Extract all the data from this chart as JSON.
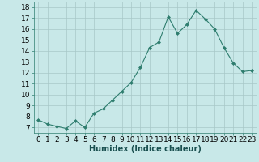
{
  "x": [
    0,
    1,
    2,
    3,
    4,
    5,
    6,
    7,
    8,
    9,
    10,
    11,
    12,
    13,
    14,
    15,
    16,
    17,
    18,
    19,
    20,
    21,
    22,
    23
  ],
  "y": [
    7.7,
    7.3,
    7.1,
    6.9,
    7.6,
    7.0,
    8.3,
    8.7,
    9.5,
    10.3,
    11.1,
    12.5,
    14.3,
    14.8,
    17.1,
    15.6,
    16.4,
    17.7,
    16.9,
    16.0,
    14.3,
    12.9,
    12.1,
    12.2
  ],
  "xlabel": "Humidex (Indice chaleur)",
  "xlim": [
    -0.5,
    23.5
  ],
  "ylim": [
    6.5,
    18.5
  ],
  "yticks": [
    7,
    8,
    9,
    10,
    11,
    12,
    13,
    14,
    15,
    16,
    17,
    18
  ],
  "xticks": [
    0,
    1,
    2,
    3,
    4,
    5,
    6,
    7,
    8,
    9,
    10,
    11,
    12,
    13,
    14,
    15,
    16,
    17,
    18,
    19,
    20,
    21,
    22,
    23
  ],
  "line_color": "#2e7d6e",
  "marker_color": "#2e7d6e",
  "bg_color": "#c8e8e8",
  "grid_color": "#a8c8c8",
  "xlabel_fontsize": 7,
  "tick_fontsize": 6.5
}
